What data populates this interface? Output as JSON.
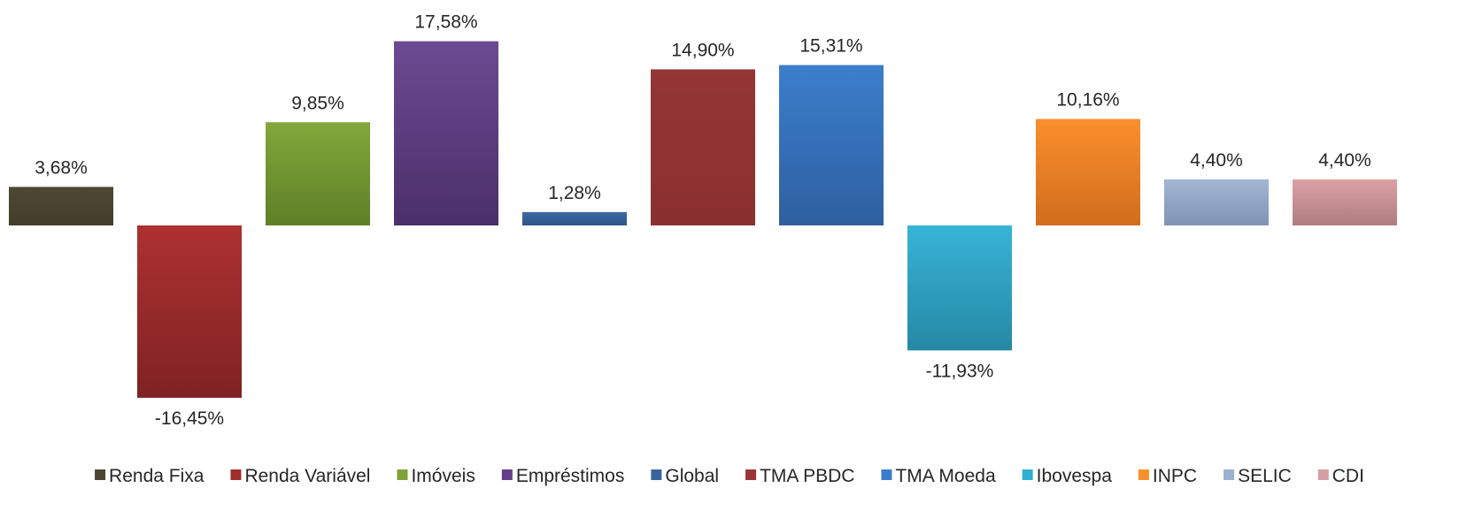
{
  "chart_data": {
    "type": "bar",
    "title": "",
    "xlabel": "",
    "ylabel": "",
    "categories": [
      "Renda Fixa",
      "Renda Variável",
      "Imóveis",
      "Empréstimos",
      "Global",
      "TMA PBDC",
      "TMA Moeda",
      "Ibovespa",
      "INPC",
      "SELIC",
      "CDI"
    ],
    "values": [
      3.68,
      -16.45,
      9.85,
      17.58,
      1.28,
      14.9,
      15.31,
      -11.93,
      10.16,
      4.4,
      4.4
    ],
    "value_labels": [
      "3,68%",
      "-16,45%",
      "9,85%",
      "17,58%",
      "1,28%",
      "14,90%",
      "15,31%",
      "-11,93%",
      "10,16%",
      "4,40%",
      "4,40%"
    ],
    "colors": [
      {
        "top": "#4d4832",
        "bottom": "#433e2a"
      },
      {
        "top": "#ad3131",
        "bottom": "#7f2222"
      },
      {
        "top": "#82a83a",
        "bottom": "#5f7f27"
      },
      {
        "top": "#6d4a92",
        "bottom": "#4a2f6a"
      },
      {
        "top": "#3e69a3",
        "bottom": "#2d5689"
      },
      {
        "top": "#953535",
        "bottom": "#8a3030"
      },
      {
        "top": "#3b7fcc",
        "bottom": "#2e5fa0"
      },
      {
        "top": "#38b4d6",
        "bottom": "#2589a6"
      },
      {
        "top": "#fb8f2c",
        "bottom": "#d06d1c"
      },
      {
        "top": "#a3b6d4",
        "bottom": "#8193b4"
      },
      {
        "top": "#dba2a4",
        "bottom": "#b07c80"
      }
    ],
    "legend": {
      "position": "bottom",
      "entries": [
        "Renda Fixa",
        "Renda Variável",
        "Imóveis",
        "Empréstimos",
        "Global",
        "TMA PBDC",
        "TMA Moeda",
        "Ibovespa",
        "INPC",
        "SELIC",
        "CDI"
      ],
      "swatch_colors": [
        "#4b4631",
        "#a02e2e",
        "#7fa23b",
        "#633f87",
        "#3a659e",
        "#9c3535",
        "#3a7ccc",
        "#32aed0",
        "#f7902c",
        "#9db0d0",
        "#d49ea2"
      ]
    },
    "axes_visible": false,
    "grid": false
  }
}
